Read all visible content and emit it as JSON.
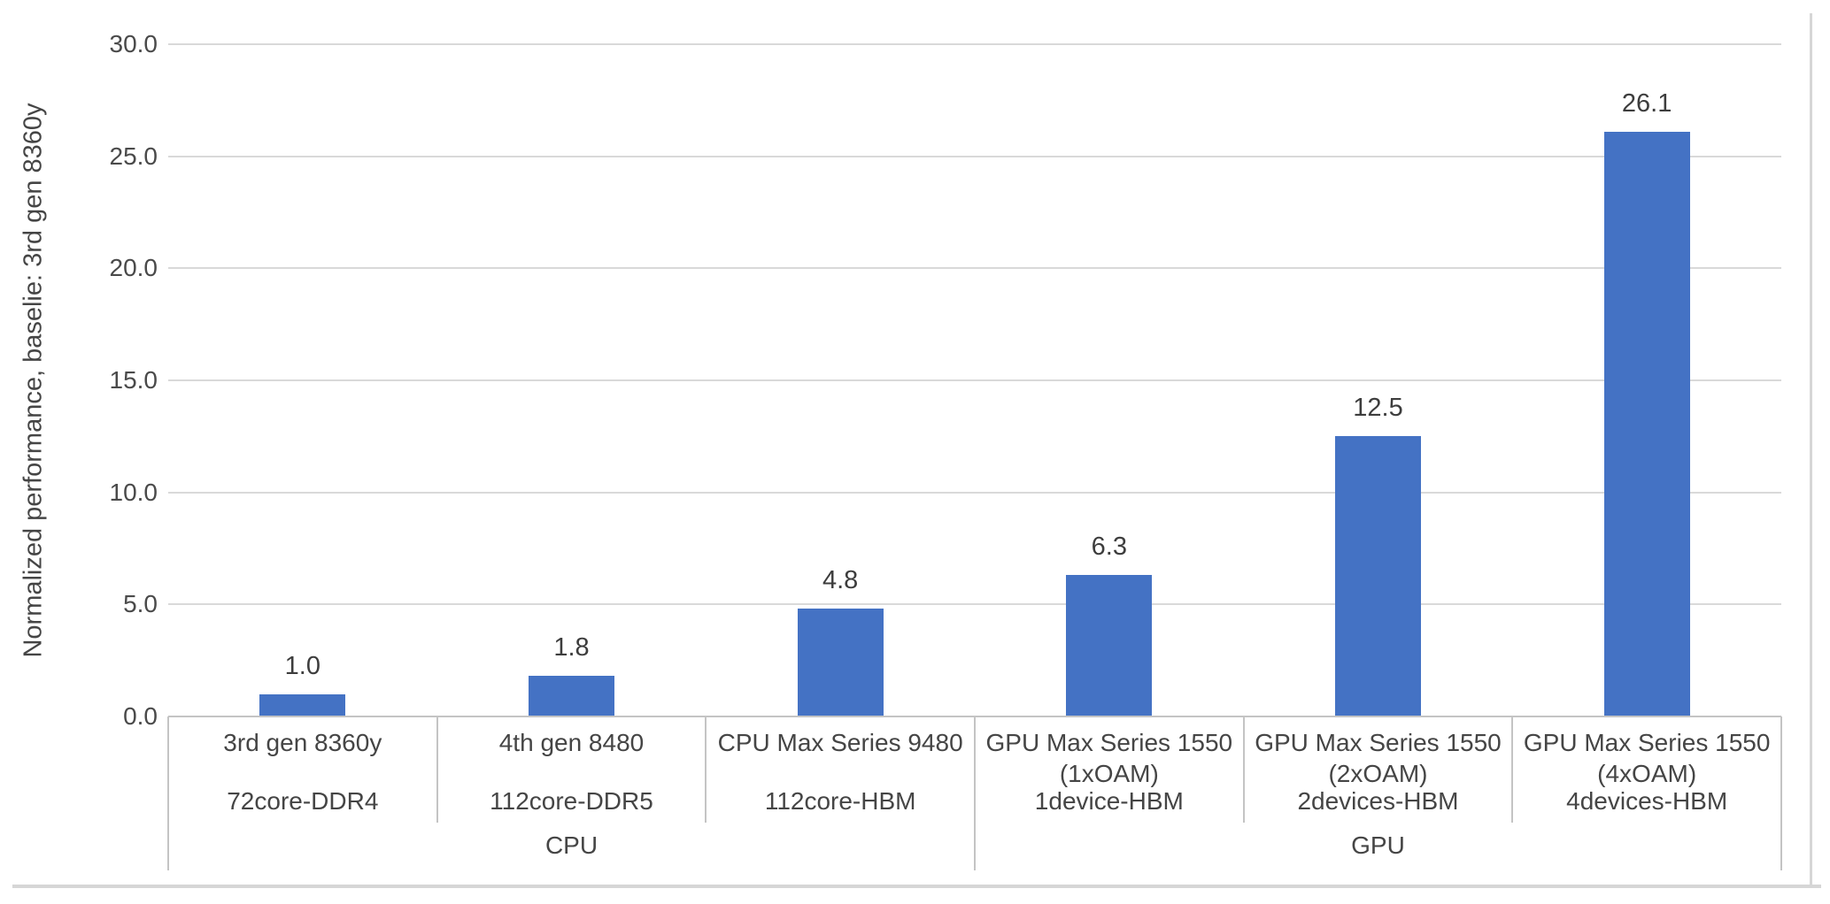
{
  "chart_data": {
    "type": "bar",
    "title": "",
    "xlabel": "",
    "ylabel": "Normalized performance, baselie: 3rd gen 8360y",
    "ylim": [
      0,
      30
    ],
    "ytick_step": 5,
    "ytick_labels": [
      "0.0",
      "5.0",
      "10.0",
      "15.0",
      "20.0",
      "25.0",
      "30.0"
    ],
    "grid": "horizontal",
    "legend": "none",
    "bar_color": "#4472C4",
    "categories": [
      {
        "name_lines": [
          "3rd gen 8360y"
        ],
        "spec": "72core-DDR4",
        "group": "CPU",
        "value": 1.0,
        "data_label": "1.0"
      },
      {
        "name_lines": [
          "4th gen 8480"
        ],
        "spec": "112core-DDR5",
        "group": "CPU",
        "value": 1.8,
        "data_label": "1.8"
      },
      {
        "name_lines": [
          "CPU Max Series 9480"
        ],
        "spec": "112core-HBM",
        "group": "CPU",
        "value": 4.8,
        "data_label": "4.8"
      },
      {
        "name_lines": [
          "GPU Max Series 1550",
          "(1xOAM)"
        ],
        "spec": "1device-HBM",
        "group": "GPU",
        "value": 6.3,
        "data_label": "6.3"
      },
      {
        "name_lines": [
          "GPU Max Series 1550",
          "(2xOAM)"
        ],
        "spec": "2devices-HBM",
        "group": "GPU",
        "value": 12.5,
        "data_label": "12.5"
      },
      {
        "name_lines": [
          "GPU Max Series 1550",
          "(4xOAM)"
        ],
        "spec": "4devices-HBM",
        "group": "GPU",
        "value": 26.1,
        "data_label": "26.1"
      }
    ],
    "groups": [
      {
        "label": "CPU",
        "span": 3
      },
      {
        "label": "GPU",
        "span": 3
      }
    ]
  },
  "colors": {
    "bar": "#4472C4",
    "gridline": "#d9d9d9",
    "axis_line": "#c4c4c4",
    "text": "#454545",
    "frame": "#d6d6d6"
  }
}
